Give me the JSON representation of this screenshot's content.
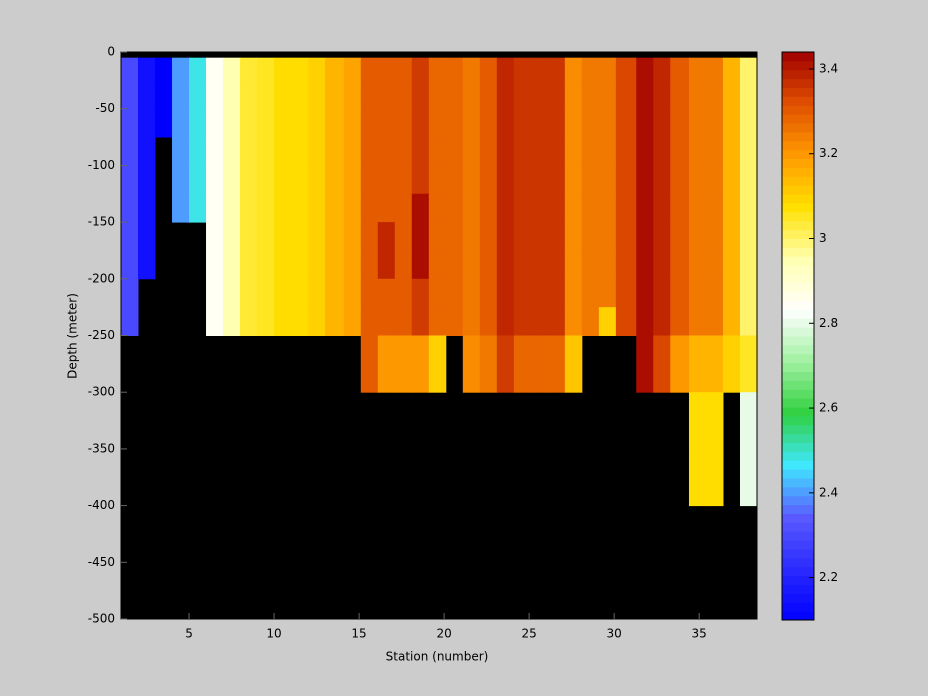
{
  "chart_data": {
    "type": "heatmap",
    "xlabel": "Station (number)",
    "ylabel": "Depth (meter)",
    "xlim": [
      1,
      38.4
    ],
    "ylim": [
      -500,
      0
    ],
    "xticks": [
      5,
      10,
      15,
      20,
      25,
      30,
      35
    ],
    "yticks": [
      0,
      -50,
      -100,
      -150,
      -200,
      -250,
      -300,
      -350,
      -400,
      -450,
      -500
    ],
    "x_edges": [
      1,
      2,
      3,
      4,
      5,
      6,
      7,
      8,
      9,
      10,
      11,
      12,
      13,
      14.1,
      15.1,
      16.1,
      17.1,
      18.1,
      19.1,
      20.1,
      21.1,
      22.1,
      23.1,
      24.1,
      25.1,
      26.1,
      27.1,
      28.1,
      29.1,
      30.1,
      31.3,
      32.3,
      33.3,
      34.4,
      35.4,
      36.4,
      37.4,
      38.4
    ],
    "y_edges": [
      0,
      -5,
      -25,
      -50,
      -75,
      -100,
      -125,
      -150,
      -175,
      -200,
      -225,
      -250,
      -300,
      -350,
      -400,
      -500
    ],
    "clim": [
      2.1,
      3.44
    ],
    "colorbar_ticks": [
      2.2,
      2.4,
      2.6,
      2.8,
      3,
      3.2,
      3.4
    ],
    "colormap": [
      "#0000ff",
      "#2a2aff",
      "#5a5aff",
      "#40e8ff",
      "#30d040",
      "#a0f0a0",
      "#ffffff",
      "#ffffb0",
      "#ffe000",
      "#ff9a00",
      "#e05000",
      "#a00000"
    ],
    "missing_color": "#000000",
    "values": [
      [
        null,
        null,
        null,
        null,
        null,
        null,
        null,
        null,
        null,
        null,
        null,
        null,
        null,
        null,
        null,
        null,
        null,
        null,
        null,
        null,
        null,
        null,
        null,
        null,
        null,
        null,
        null,
        null,
        null,
        null,
        null,
        null,
        null,
        null,
        null,
        null,
        null
      ],
      [
        2.3,
        2.15,
        2.1,
        2.4,
        2.48,
        2.85,
        2.95,
        3.04,
        3.05,
        3.08,
        3.08,
        3.1,
        3.15,
        3.18,
        3.3,
        3.3,
        3.3,
        3.35,
        3.28,
        3.28,
        3.25,
        3.3,
        3.38,
        3.36,
        3.36,
        3.36,
        3.22,
        3.25,
        3.25,
        3.33,
        3.42,
        3.38,
        3.3,
        3.25,
        3.25,
        3.15,
        3.0
      ],
      [
        2.3,
        2.15,
        2.1,
        2.4,
        2.48,
        2.85,
        2.95,
        3.04,
        3.05,
        3.08,
        3.08,
        3.1,
        3.15,
        3.18,
        3.3,
        3.3,
        3.3,
        3.35,
        3.28,
        3.28,
        3.25,
        3.3,
        3.38,
        3.36,
        3.36,
        3.36,
        3.22,
        3.25,
        3.25,
        3.33,
        3.42,
        3.38,
        3.3,
        3.25,
        3.25,
        3.15,
        3.0
      ],
      [
        2.3,
        2.15,
        2.1,
        2.4,
        2.48,
        2.85,
        2.95,
        3.04,
        3.05,
        3.08,
        3.08,
        3.1,
        3.15,
        3.18,
        3.3,
        3.3,
        3.3,
        3.35,
        3.28,
        3.28,
        3.25,
        3.3,
        3.38,
        3.36,
        3.36,
        3.36,
        3.22,
        3.25,
        3.25,
        3.33,
        3.42,
        3.38,
        3.3,
        3.25,
        3.25,
        3.15,
        3.0
      ],
      [
        2.3,
        2.15,
        null,
        2.4,
        2.48,
        2.85,
        2.95,
        3.04,
        3.05,
        3.08,
        3.08,
        3.1,
        3.15,
        3.18,
        3.3,
        3.3,
        3.3,
        3.35,
        3.28,
        3.28,
        3.25,
        3.3,
        3.38,
        3.36,
        3.36,
        3.36,
        3.22,
        3.25,
        3.25,
        3.33,
        3.42,
        3.38,
        3.3,
        3.25,
        3.25,
        3.15,
        3.0
      ],
      [
        2.3,
        2.15,
        null,
        2.4,
        2.48,
        2.85,
        2.95,
        3.04,
        3.05,
        3.08,
        3.08,
        3.1,
        3.15,
        3.18,
        3.3,
        3.3,
        3.3,
        3.35,
        3.28,
        3.28,
        3.25,
        3.3,
        3.38,
        3.36,
        3.36,
        3.36,
        3.22,
        3.25,
        3.25,
        3.33,
        3.42,
        3.38,
        3.3,
        3.25,
        3.25,
        3.15,
        3.0
      ],
      [
        2.3,
        2.15,
        null,
        2.4,
        2.48,
        2.85,
        2.95,
        3.04,
        3.05,
        3.08,
        3.08,
        3.1,
        3.15,
        3.18,
        3.3,
        3.3,
        3.3,
        3.42,
        3.28,
        3.28,
        3.25,
        3.3,
        3.38,
        3.36,
        3.36,
        3.36,
        3.22,
        3.25,
        3.25,
        3.33,
        3.42,
        3.38,
        3.3,
        3.25,
        3.25,
        3.15,
        3.0
      ],
      [
        2.3,
        2.15,
        null,
        null,
        null,
        2.85,
        2.95,
        3.04,
        3.05,
        3.08,
        3.08,
        3.1,
        3.15,
        3.18,
        3.3,
        3.38,
        3.3,
        3.42,
        3.28,
        3.28,
        3.25,
        3.3,
        3.38,
        3.36,
        3.36,
        3.36,
        3.22,
        3.25,
        3.25,
        3.33,
        3.42,
        3.38,
        3.3,
        3.25,
        3.25,
        3.15,
        3.0
      ],
      [
        2.3,
        2.15,
        null,
        null,
        null,
        2.85,
        2.95,
        3.04,
        3.05,
        3.08,
        3.08,
        3.1,
        3.15,
        3.18,
        3.3,
        3.38,
        3.3,
        3.42,
        3.28,
        3.28,
        3.25,
        3.3,
        3.38,
        3.36,
        3.36,
        3.36,
        3.22,
        3.25,
        3.25,
        3.33,
        3.42,
        3.38,
        3.3,
        3.25,
        3.25,
        3.15,
        3.0
      ],
      [
        2.3,
        null,
        null,
        null,
        null,
        2.85,
        2.95,
        3.04,
        3.05,
        3.08,
        3.08,
        3.1,
        3.15,
        3.18,
        3.3,
        3.3,
        3.3,
        3.35,
        3.28,
        3.28,
        3.25,
        3.3,
        3.38,
        3.36,
        3.36,
        3.36,
        3.22,
        3.25,
        3.25,
        3.33,
        3.42,
        3.38,
        3.3,
        3.25,
        3.25,
        3.15,
        3.0
      ],
      [
        2.3,
        null,
        null,
        null,
        null,
        2.85,
        2.95,
        3.04,
        3.05,
        3.08,
        3.08,
        3.1,
        3.15,
        3.18,
        3.3,
        3.3,
        3.3,
        3.35,
        3.28,
        3.28,
        3.25,
        3.3,
        3.38,
        3.36,
        3.36,
        3.36,
        3.22,
        3.25,
        3.1,
        3.33,
        3.42,
        3.38,
        3.3,
        3.25,
        3.25,
        3.15,
        3.0
      ],
      [
        null,
        null,
        null,
        null,
        null,
        null,
        null,
        null,
        null,
        null,
        null,
        null,
        null,
        null,
        3.3,
        3.2,
        3.2,
        3.2,
        3.1,
        null,
        3.22,
        3.25,
        3.35,
        3.28,
        3.28,
        3.28,
        3.12,
        null,
        null,
        null,
        3.42,
        3.33,
        3.2,
        3.15,
        3.15,
        3.1,
        3.05
      ],
      [
        null,
        null,
        null,
        null,
        null,
        null,
        null,
        null,
        null,
        null,
        null,
        null,
        null,
        null,
        null,
        null,
        null,
        null,
        null,
        null,
        null,
        null,
        null,
        null,
        null,
        null,
        null,
        null,
        null,
        null,
        null,
        null,
        null,
        3.08,
        3.08,
        null,
        2.8
      ],
      [
        null,
        null,
        null,
        null,
        null,
        null,
        null,
        null,
        null,
        null,
        null,
        null,
        null,
        null,
        null,
        null,
        null,
        null,
        null,
        null,
        null,
        null,
        null,
        null,
        null,
        null,
        null,
        null,
        null,
        null,
        null,
        null,
        null,
        3.08,
        3.08,
        null,
        2.8
      ],
      [
        null,
        null,
        null,
        null,
        null,
        null,
        null,
        null,
        null,
        null,
        null,
        null,
        null,
        null,
        null,
        null,
        null,
        null,
        null,
        null,
        null,
        null,
        null,
        null,
        null,
        null,
        null,
        null,
        null,
        null,
        null,
        null,
        null,
        null,
        null,
        null,
        null
      ]
    ]
  }
}
